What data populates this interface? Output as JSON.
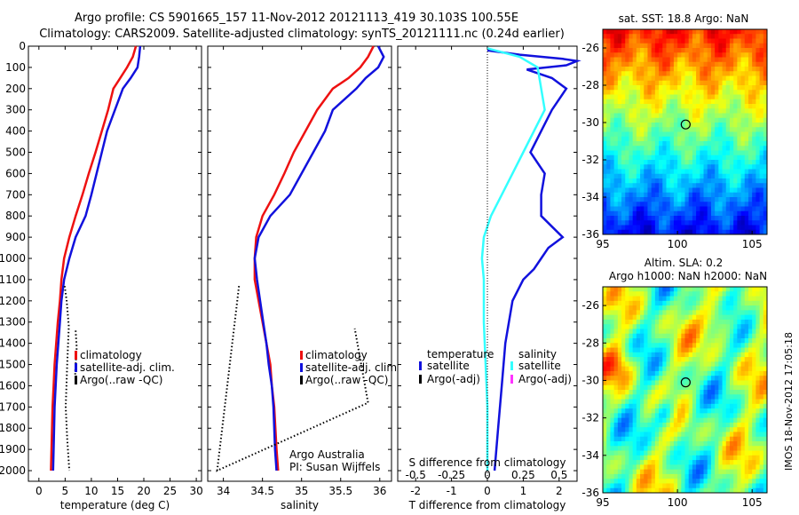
{
  "header": {
    "line1": "Argo profile: CS 5901665_157 11-Nov-2012 20121113_419 30.103S 100.55E",
    "line2": "Climatology: CARS2009. Satellite-adjusted climatology: synTS_20121111.nc (0.24d earlier)"
  },
  "timestamp": "IMOS 18-Nov-2012 17:05:18",
  "colors": {
    "climatology": "#ee1111",
    "satellite": "#1111dd",
    "argo": "#000000",
    "sal_sat": "#33ffff",
    "sal_argo": "#ff33ff"
  },
  "chart_data": [
    {
      "type": "line",
      "xlabel": "temperature (deg C)",
      "ylabel": "",
      "xlim": [
        -2,
        31
      ],
      "ylim": [
        2050,
        0
      ],
      "xticks": [
        0,
        5,
        10,
        15,
        20,
        25,
        30
      ],
      "yticks": [
        0,
        100,
        200,
        300,
        400,
        500,
        600,
        700,
        800,
        900,
        1000,
        1100,
        1200,
        1300,
        1400,
        1500,
        1600,
        1700,
        1800,
        1900,
        2000
      ],
      "legend": [
        "climatology",
        "satellite-adj. clim.",
        "Argo(..raw -QC)"
      ],
      "series": [
        {
          "name": "climatology",
          "color": "#ee1111",
          "x": [
            18.5,
            17.9,
            16.8,
            15.5,
            14.2,
            13.2,
            12.0,
            10.8,
            9.5,
            8.3,
            7.0,
            5.8,
            4.8,
            4.3,
            4.0,
            3.6,
            3.3,
            3.0,
            2.8,
            2.6,
            2.4,
            2.3
          ],
          "depth": [
            0,
            50,
            100,
            150,
            200,
            300,
            400,
            500,
            600,
            700,
            800,
            900,
            1000,
            1100,
            1200,
            1300,
            1400,
            1500,
            1600,
            1700,
            1900,
            2000
          ]
        },
        {
          "name": "satellite-adj. clim.",
          "color": "#1111dd",
          "x": [
            19.3,
            19.1,
            18.8,
            17.5,
            16.0,
            14.5,
            13.0,
            12.0,
            11.0,
            10.0,
            8.9,
            7.0,
            5.8,
            4.8,
            4.3,
            4.0,
            3.7,
            3.4,
            3.2,
            3.0,
            2.8,
            2.7
          ],
          "depth": [
            0,
            50,
            100,
            150,
            200,
            300,
            400,
            500,
            600,
            700,
            800,
            900,
            1000,
            1100,
            1200,
            1300,
            1400,
            1500,
            1600,
            1700,
            1900,
            2000
          ]
        },
        {
          "name": "Argo(..raw -QC)",
          "color": "#000000",
          "x": [
            4.9,
            5.3,
            5.7,
            5.4,
            5.1,
            5.4,
            5.8
          ],
          "depth": [
            1130,
            1200,
            1320,
            1500,
            1700,
            1850,
            2000
          ]
        },
        {
          "name": "Argo(..raw -QC) 2",
          "color": "#000000",
          "x": [
            7.0,
            7.2,
            6.9,
            7.1
          ],
          "depth": [
            1340,
            1420,
            1540,
            1580
          ]
        }
      ]
    },
    {
      "type": "line",
      "xlabel": "salinity",
      "xlim": [
        33.8,
        36.15
      ],
      "ylim": [
        2050,
        0
      ],
      "xticks": [
        34,
        34.5,
        35,
        35.5,
        36
      ],
      "legend": [
        "climatology",
        "satellite-adj. clim.",
        "Argo(..raw -QC)"
      ],
      "annotation": [
        "Argo Australia",
        "PI: Susan Wijffels"
      ],
      "series": [
        {
          "name": "climatology",
          "color": "#ee1111",
          "x": [
            35.92,
            35.85,
            35.75,
            35.6,
            35.4,
            35.2,
            35.05,
            34.9,
            34.78,
            34.65,
            34.5,
            34.42,
            34.4,
            34.4,
            34.45,
            34.5,
            34.55,
            34.6,
            34.62,
            34.65,
            34.68,
            34.7
          ],
          "depth": [
            0,
            50,
            100,
            150,
            200,
            300,
            400,
            500,
            600,
            700,
            800,
            900,
            1000,
            1100,
            1200,
            1300,
            1400,
            1500,
            1600,
            1700,
            1900,
            2000
          ]
        },
        {
          "name": "satellite-adj. clim.",
          "color": "#1111dd",
          "x": [
            35.98,
            36.05,
            35.98,
            35.82,
            35.7,
            35.4,
            35.3,
            35.15,
            35.0,
            34.85,
            34.6,
            34.45,
            34.4,
            34.43,
            34.47,
            34.51,
            34.55,
            34.58,
            34.62,
            34.64,
            34.66,
            34.68
          ],
          "depth": [
            0,
            50,
            100,
            150,
            200,
            300,
            400,
            500,
            600,
            700,
            800,
            900,
            1000,
            1100,
            1200,
            1300,
            1400,
            1500,
            1600,
            1700,
            1900,
            2000
          ]
        },
        {
          "name": "Argo(..raw -QC)",
          "color": "#000000",
          "x": [
            34.2,
            34.05,
            33.92,
            35.85,
            35.68
          ],
          "depth": [
            1130,
            1600,
            2000,
            1680,
            1330
          ]
        }
      ]
    },
    {
      "type": "line",
      "xlabel": "T difference from climatology",
      "x2label": "S difference from climatology",
      "xlim": [
        -2.5,
        2.5
      ],
      "ylim": [
        2050,
        0
      ],
      "xticks": [
        -2,
        -1,
        0,
        1,
        2
      ],
      "x2ticks": [
        -0.5,
        -0.25,
        0,
        0.25,
        0.5
      ],
      "legend": {
        "temperature": [
          "satellite",
          "Argo(-adj)"
        ],
        "salinity": [
          "satellite",
          "Argo(-adj)"
        ]
      },
      "series": [
        {
          "name": "temperature satellite",
          "color": "#1111dd",
          "x": [
            0,
            0.9,
            2.1,
            2.5,
            2.2,
            1.1,
            1.8,
            2.2,
            1.8,
            1.5,
            1.2,
            1.6,
            1.5,
            1.5,
            1.5,
            1.8,
            2.1,
            1.7,
            1.5,
            1.3,
            1.0,
            0.7,
            0.5,
            0.4,
            0.3,
            0.25,
            0.2
          ],
          "depth": [
            20,
            40,
            60,
            70,
            90,
            110,
            150,
            200,
            300,
            400,
            500,
            600,
            700,
            750,
            800,
            850,
            900,
            950,
            1000,
            1050,
            1100,
            1200,
            1400,
            1600,
            1800,
            1900,
            2000
          ]
        },
        {
          "name": "salinity satellite",
          "color": "#33ffff",
          "x": [
            0,
            0.9,
            1.4,
            1.5,
            1.6,
            1.3,
            1.0,
            0.7,
            0.4,
            0.1,
            -0.1,
            -0.15,
            -0.1,
            -0.1,
            -0.05,
            0,
            0,
            0
          ],
          "depth": [
            10,
            50,
            100,
            200,
            300,
            400,
            500,
            600,
            700,
            800,
            900,
            1000,
            1100,
            1300,
            1500,
            1700,
            1900,
            2000
          ]
        }
      ]
    },
    {
      "type": "heatmap",
      "title": "sat. SST: 18.8 Argo: NaN",
      "xlim": [
        95,
        106
      ],
      "ylim": [
        -36,
        -25
      ],
      "xticks": [
        95,
        100,
        105
      ],
      "yticks": [
        -26,
        -28,
        -30,
        -32,
        -34,
        -36
      ],
      "marker": {
        "lon": 100.55,
        "lat": -30.103
      },
      "colormap": "jet"
    },
    {
      "type": "heatmap",
      "title": "Altim. SLA: 0.2",
      "subtitle": "Argo h1000: NaN h2000: NaN",
      "xlim": [
        95,
        106
      ],
      "ylim": [
        -36,
        -25
      ],
      "xticks": [
        95,
        100,
        105
      ],
      "yticks": [
        -26,
        -28,
        -30,
        -32,
        -34,
        -36
      ],
      "marker": {
        "lon": 100.55,
        "lat": -30.103
      },
      "colormap": "jet"
    }
  ]
}
